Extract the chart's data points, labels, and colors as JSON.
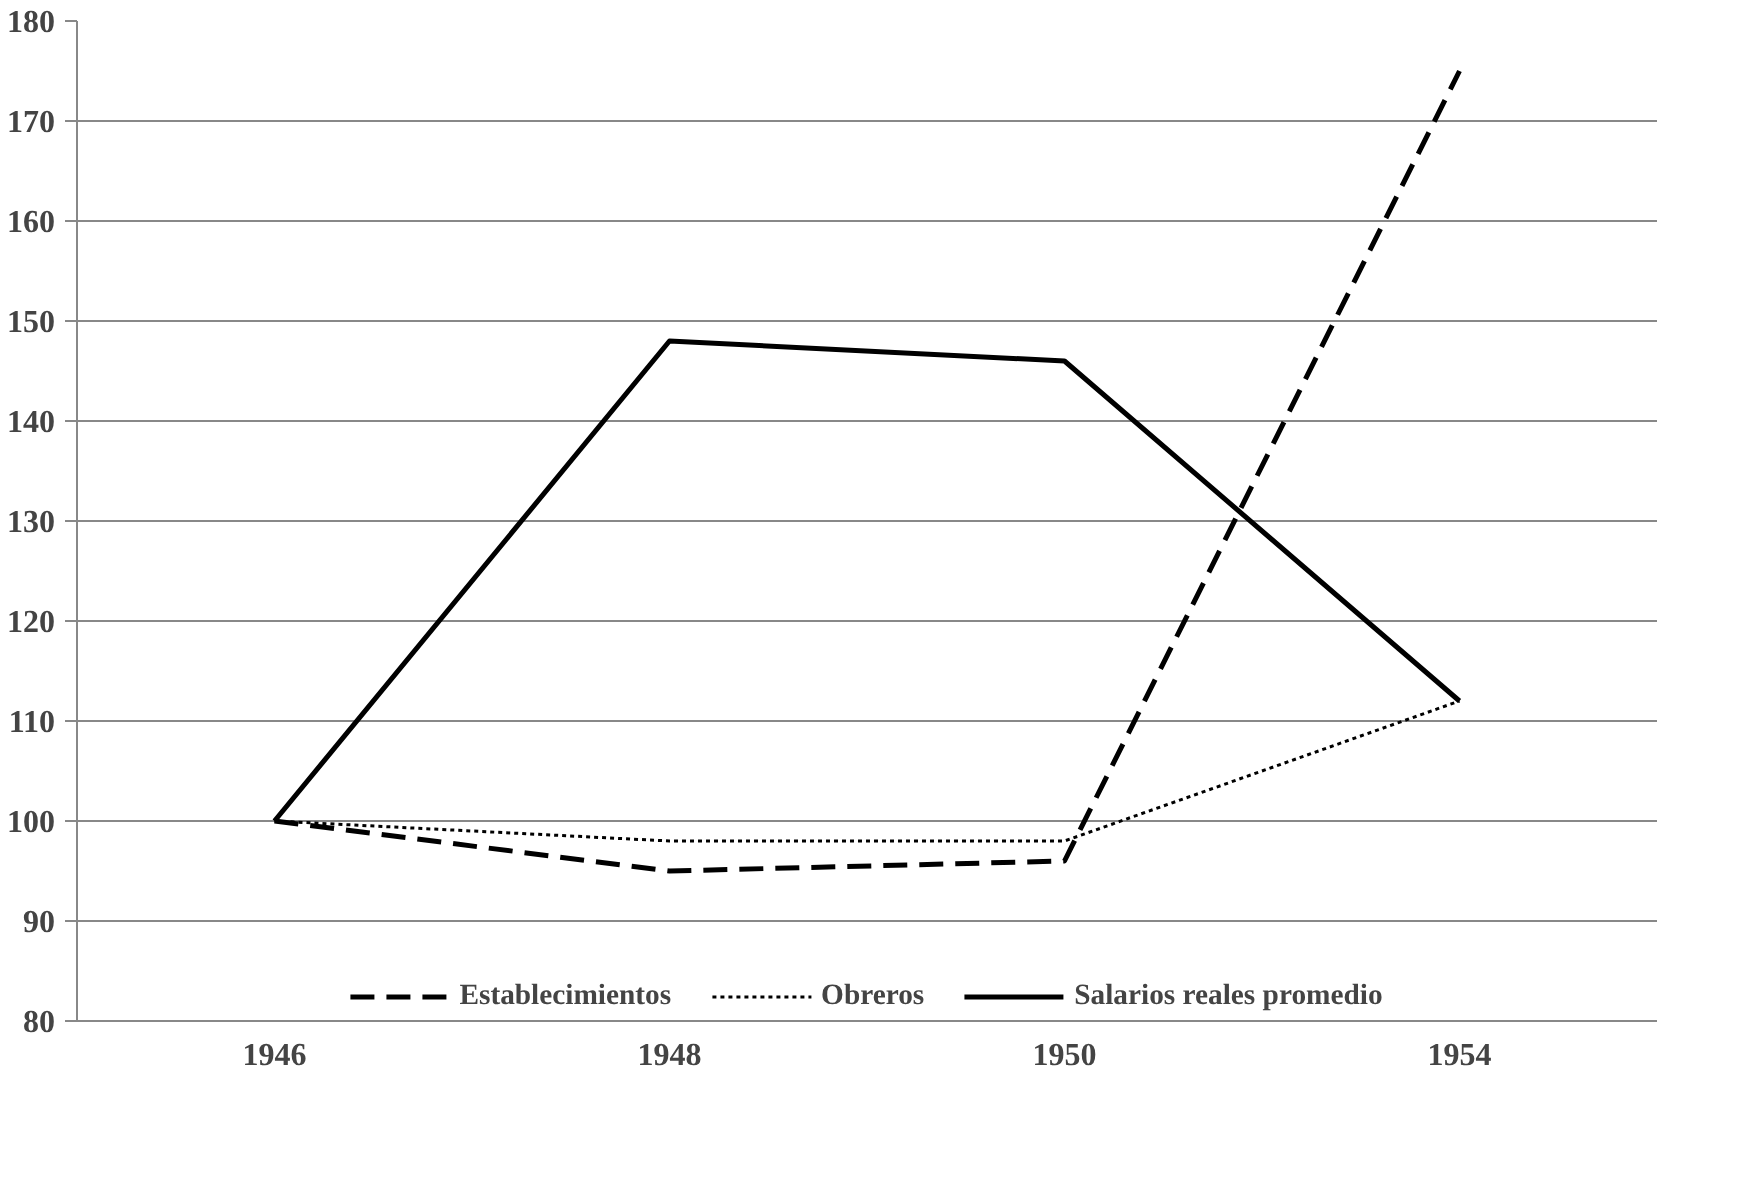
{
  "chart_data": {
    "type": "line",
    "categories": [
      "1946",
      "1948",
      "1950",
      "1954"
    ],
    "series": [
      {
        "name": "Establecimientos",
        "color": "#000000",
        "line_style": "dashed",
        "values": [
          100,
          95,
          96,
          175
        ]
      },
      {
        "name": "Obreros",
        "color": "#000000",
        "line_style": "dotted",
        "values": [
          100,
          98,
          98,
          112
        ]
      },
      {
        "name": "Salarios reales promedio",
        "color": "#000000",
        "line_style": "solid",
        "values": [
          100,
          148,
          146,
          112
        ]
      }
    ],
    "ylim": [
      80,
      180
    ],
    "yticks": [
      80,
      90,
      100,
      110,
      120,
      130,
      140,
      150,
      160,
      170,
      180
    ],
    "grid": "y",
    "legend": "bottom"
  }
}
